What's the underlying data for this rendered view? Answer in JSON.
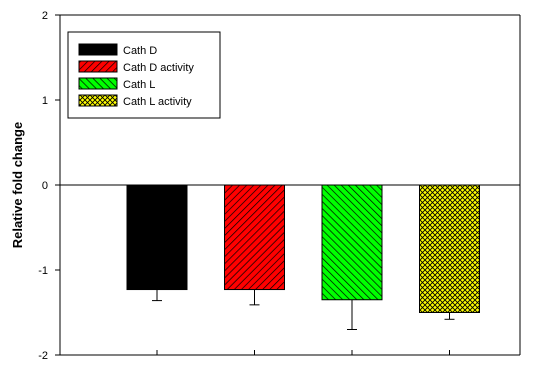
{
  "chart_data": {
    "type": "bar",
    "title": "",
    "xlabel": "",
    "ylabel": "Relative fold change",
    "ylim": [
      -2,
      2
    ],
    "yticks": [
      -2,
      -1,
      0,
      1,
      2
    ],
    "grid": false,
    "legend_position": "top-left",
    "series": [
      {
        "name": "Cath D",
        "value": -1.23,
        "error": 0.13,
        "color": "#000000",
        "pattern": "solid"
      },
      {
        "name": "Cath D activity",
        "value": -1.23,
        "error": 0.18,
        "color": "#ff0000",
        "pattern": "diagonal-hatch"
      },
      {
        "name": "Cath L",
        "value": -1.35,
        "error": 0.35,
        "color": "#00ff00",
        "pattern": "back-diagonal-hatch"
      },
      {
        "name": "Cath L activity",
        "value": -1.5,
        "error": 0.08,
        "color": "#ffff00",
        "pattern": "crosshatch"
      }
    ]
  }
}
